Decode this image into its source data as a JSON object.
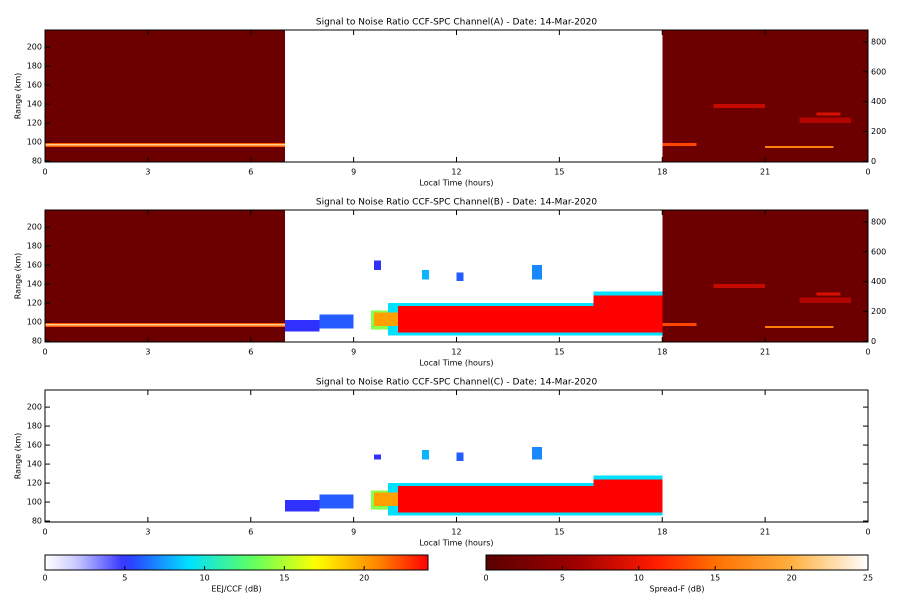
{
  "chart_data": [
    {
      "type": "heatmap",
      "title": "Signal to Noise Ratio CCF-SPC Channel(A) - Date: 14-Mar-2020",
      "xlabel": "Local Time (hours)",
      "ylabel": "Range (km)",
      "xlim": [
        0,
        24
      ],
      "xticks": [
        0,
        3,
        6,
        9,
        12,
        15,
        18,
        21,
        {
          "value": 24,
          "label": "0"
        }
      ],
      "ylim": [
        79,
        218
      ],
      "yticks": [
        80,
        100,
        120,
        140,
        160,
        180,
        200
      ],
      "y2lim": [
        -5,
        880
      ],
      "y2ticks": [
        0,
        200,
        400,
        600,
        800
      ],
      "layers": [
        {
          "cmap": "hot",
          "x0": [
            0,
            0,
            0,
            18,
            18,
            21,
            19.5,
            22,
            22.5
          ],
          "x1": [
            7,
            7,
            7,
            24,
            19,
            23,
            21,
            23.5,
            23.2
          ],
          "y0": [
            79,
            95,
            96.5,
            79,
            96,
            94,
            136,
            120,
            128
          ],
          "y1": [
            218,
            99,
            98,
            218,
            99,
            96,
            140,
            126,
            131
          ],
          "values": [
            1.5,
            14,
            22,
            1.5,
            13,
            16,
            8,
            7,
            9
          ]
        }
      ]
    },
    {
      "type": "heatmap",
      "title": "Signal to Noise Ratio CCF-SPC Channel(B) - Date: 14-Mar-2020",
      "xlabel": "Local Time (hours)",
      "ylabel": "Range (km)",
      "xlim": [
        0,
        24
      ],
      "xticks": [
        0,
        3,
        6,
        9,
        12,
        15,
        18,
        21,
        {
          "value": 24,
          "label": "0"
        }
      ],
      "ylim": [
        79,
        218
      ],
      "yticks": [
        80,
        100,
        120,
        140,
        160,
        180,
        200
      ],
      "y2lim": [
        -5,
        880
      ],
      "y2ticks": [
        0,
        200,
        400,
        600,
        800
      ],
      "layers": [
        {
          "cmap": "hot",
          "x0": [
            0,
            0,
            0,
            18,
            18,
            21,
            19.5,
            22,
            22.5
          ],
          "x1": [
            7,
            7,
            7,
            24,
            19,
            23,
            21,
            23.5,
            23.2
          ],
          "y0": [
            79,
            95,
            96.5,
            79,
            96,
            94,
            136,
            120,
            128
          ],
          "y1": [
            218,
            99,
            98,
            218,
            99,
            96,
            140,
            126,
            131
          ],
          "values": [
            1.5,
            14,
            22,
            1.5,
            13,
            16,
            8,
            7,
            9
          ]
        },
        {
          "cmap": "rainbow",
          "x0": [
            7,
            8,
            9.5,
            10,
            16,
            9.6,
            10.3,
            16,
            11,
            12,
            14.2,
            9.6
          ],
          "x1": [
            8,
            9,
            10.2,
            18,
            18,
            10.3,
            18,
            18,
            11.2,
            12.2,
            14.5,
            9.8
          ],
          "y0": [
            90,
            93,
            92,
            86,
            112,
            96,
            89,
            114,
            145,
            143,
            145,
            155
          ],
          "y1": [
            102,
            108,
            112,
            120,
            132,
            110,
            117,
            128,
            155,
            152,
            160,
            165
          ],
          "values": [
            5,
            6,
            14,
            9,
            9,
            20,
            24,
            24,
            8,
            6,
            7,
            5
          ]
        }
      ]
    },
    {
      "type": "heatmap",
      "title": "Signal to Noise Ratio CCF-SPC Channel(C) - Date: 14-Mar-2020",
      "xlabel": "Local Time (hours)",
      "ylabel": "Range (km)",
      "xlim": [
        0,
        24
      ],
      "xticks": [
        0,
        3,
        6,
        9,
        12,
        15,
        18,
        21,
        {
          "value": 24,
          "label": "0"
        }
      ],
      "ylim": [
        79,
        218
      ],
      "yticks": [
        80,
        100,
        120,
        140,
        160,
        180,
        200
      ],
      "layers": [
        {
          "cmap": "rainbow",
          "x0": [
            7,
            8,
            9.5,
            10,
            16,
            9.6,
            10.3,
            16,
            11,
            12,
            14.2,
            9.6
          ],
          "x1": [
            8,
            9,
            10.2,
            18,
            18,
            10.3,
            18,
            18,
            11.2,
            12.2,
            14.5,
            9.8
          ],
          "y0": [
            90,
            93,
            92,
            86,
            110,
            96,
            89,
            112,
            145,
            143,
            145,
            145
          ],
          "y1": [
            102,
            108,
            112,
            120,
            128,
            110,
            117,
            124,
            155,
            152,
            158,
            150
          ],
          "values": [
            5,
            6,
            14,
            9,
            9,
            20,
            24,
            24,
            8,
            6,
            7,
            5
          ]
        }
      ]
    },
    {
      "type": "colorbar",
      "cmap": "rainbow",
      "label": "EEJ/CCF (dB)",
      "lim": [
        0,
        24
      ],
      "ticks": [
        0,
        5,
        10,
        15,
        20
      ]
    },
    {
      "type": "colorbar",
      "cmap": "hot",
      "label": "Spread-F (dB)",
      "lim": [
        0,
        25
      ],
      "ticks": [
        0,
        5,
        10,
        15,
        20,
        25
      ]
    }
  ]
}
